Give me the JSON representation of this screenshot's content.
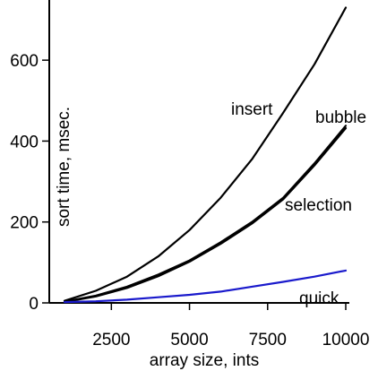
{
  "chart_data": {
    "type": "line",
    "xlabel": "array size, ints",
    "ylabel": "sort time, msec.",
    "xlim": [
      1000,
      10000
    ],
    "ylim": [
      0,
      700
    ],
    "xticks": [
      2500,
      5000,
      7500,
      10000
    ],
    "yticks": [
      0,
      200,
      400,
      600
    ],
    "grid": false,
    "x": [
      1000,
      2000,
      3000,
      4000,
      5000,
      6000,
      7000,
      8000,
      9000,
      10000
    ],
    "series": [
      {
        "name": "insert",
        "color": "#000000",
        "values": [
          5,
          30,
          65,
          115,
          180,
          260,
          355,
          470,
          590,
          730
        ]
      },
      {
        "name": "bubble",
        "color": "#000000",
        "values": [
          3,
          18,
          40,
          70,
          105,
          150,
          200,
          260,
          345,
          438
        ]
      },
      {
        "name": "selection",
        "color": "#000000",
        "values": [
          2,
          16,
          37,
          66,
          102,
          146,
          196,
          256,
          340,
          432
        ]
      },
      {
        "name": "quick",
        "color": "#1a1acc",
        "values": [
          2,
          4,
          8,
          14,
          20,
          28,
          40,
          52,
          65,
          80
        ]
      }
    ],
    "annotations": [
      {
        "text": "insert",
        "series": "insert"
      },
      {
        "text": "bubble",
        "series": "bubble"
      },
      {
        "text": "selection",
        "series": "selection"
      },
      {
        "text": "quick",
        "series": "quick"
      }
    ]
  }
}
